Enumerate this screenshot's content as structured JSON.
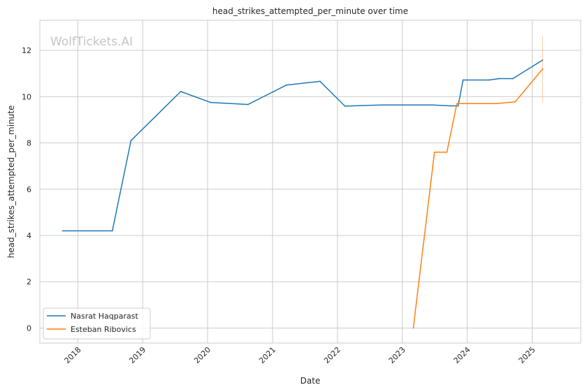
{
  "chart_data": {
    "type": "line",
    "title": "head_strikes_attempted_per_minute over time",
    "xlabel": "Date",
    "ylabel": "head_strikes_attempted_per_minute",
    "watermark": "WolfTickets.AI",
    "xlim": [
      "2017-06-01",
      "2025-10-01"
    ],
    "ylim": [
      -0.65,
      13.3
    ],
    "x_ticks": [
      "2018",
      "2019",
      "2020",
      "2021",
      "2022",
      "2023",
      "2024",
      "2025"
    ],
    "y_ticks": [
      0,
      2,
      4,
      6,
      8,
      10,
      12
    ],
    "grid": true,
    "legend_position": "lower-left",
    "series": [
      {
        "name": "Nasrat Haqparast",
        "color": "#1f77b4",
        "points": [
          [
            "2017-10-07",
            4.2
          ],
          [
            "2018-07-14",
            4.2
          ],
          [
            "2018-10-27",
            8.1
          ],
          [
            "2019-08-03",
            10.22
          ],
          [
            "2020-01-18",
            9.75
          ],
          [
            "2020-08-15",
            9.66
          ],
          [
            "2021-03-20",
            10.5
          ],
          [
            "2021-09-25",
            10.66
          ],
          [
            "2022-02-12",
            9.59
          ],
          [
            "2022-09-03",
            9.64
          ],
          [
            "2023-06-24",
            9.64
          ],
          [
            "2023-09-30",
            9.6
          ],
          [
            "2023-11-11",
            9.6
          ],
          [
            "2023-12-09",
            10.72
          ],
          [
            "2024-05-04",
            10.72
          ],
          [
            "2024-06-29",
            10.78
          ],
          [
            "2024-09-14",
            10.78
          ],
          [
            "2025-03-01",
            11.58
          ]
        ]
      },
      {
        "name": "Esteban Ribovics",
        "color": "#ff7f0e",
        "points": [
          [
            "2023-03-04",
            0.0
          ],
          [
            "2023-07-01",
            7.6
          ],
          [
            "2023-09-09",
            7.6
          ],
          [
            "2023-11-04",
            9.7
          ],
          [
            "2024-06-15",
            9.7
          ],
          [
            "2024-09-28",
            9.78
          ],
          [
            "2025-03-01",
            11.2
          ]
        ],
        "error_bar": {
          "x": "2025-03-01",
          "low": 9.75,
          "high": 12.6
        }
      }
    ]
  }
}
